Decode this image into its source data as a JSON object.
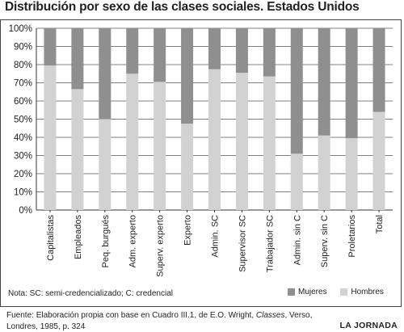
{
  "title": "Distribución por sexo de las clases sociales. Estados Unidos",
  "note": "Nota: SC: semi-credencializado; C: credencial",
  "legend": {
    "mujeres": "Mujeres",
    "hombres": "Hombres"
  },
  "footer": {
    "source_prefix": "Fuente: Elaboración propia con base en Cuadro III.1, de E.O. Wright, ",
    "source_italic": "Classes",
    "source_suffix": ", Verso, Londres, 1985, p. 324",
    "brand": "LA JORNADA"
  },
  "colors": {
    "mujeres": "#8f8f8f",
    "hombres": "#d2d2d2",
    "grid": "#555555"
  },
  "chart_data": {
    "type": "bar",
    "stacked": true,
    "percent": true,
    "categories": [
      "Capitalistas",
      "Empleados",
      "Peq. burgués",
      "Adm. experto",
      "Superv. experto",
      "Experto",
      "Admin. SC",
      "Supervisor SC",
      "Trabajador SC",
      "Admin. sin C",
      "Superv. sin C",
      "Proletarios",
      "Total"
    ],
    "series": [
      {
        "name": "Hombres",
        "values": [
          79.5,
          66.5,
          50,
          75,
          70.5,
          47.5,
          77.5,
          75.5,
          73.5,
          31,
          41,
          39.5,
          54
        ]
      },
      {
        "name": "Mujeres",
        "values": [
          20.5,
          33.5,
          50,
          25,
          29.5,
          52.5,
          22.5,
          24.5,
          26.5,
          69,
          59,
          60.5,
          46
        ]
      }
    ],
    "ylim": [
      0,
      100
    ],
    "yticks": [
      "0%",
      "10%",
      "20%",
      "30%",
      "40%",
      "50%",
      "60%",
      "70%",
      "80%",
      "90%",
      "100%"
    ],
    "grid": true,
    "legend_position": "bottom-right"
  }
}
